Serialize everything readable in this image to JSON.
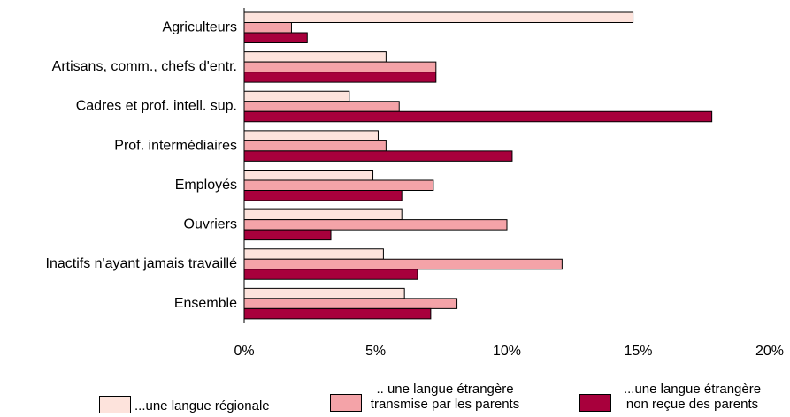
{
  "chart_data": {
    "type": "barh",
    "categories": [
      "Agriculteurs",
      "Artisans, comm., chefs d'entr.",
      "Cadres et prof. intell. sup.",
      "Prof. intermédiaires",
      "Employés",
      "Ouvriers",
      "Inactifs n'ayant jamais travaillé",
      "Ensemble"
    ],
    "series": [
      {
        "name": "...une langue régionale",
        "color": "#fde3dc",
        "values": [
          14.8,
          5.4,
          4.0,
          5.1,
          4.9,
          6.0,
          5.3,
          6.1
        ]
      },
      {
        "name": ".. une langue étrangère transmise par les parents",
        "color": "#f4a3a8",
        "values": [
          1.8,
          7.3,
          5.9,
          5.4,
          7.2,
          10.0,
          12.1,
          8.1
        ]
      },
      {
        "name": "...une langue étrangère non reçue des parents",
        "color": "#a8003c",
        "values": [
          2.4,
          7.3,
          17.8,
          10.2,
          6.0,
          3.3,
          6.6,
          7.1
        ]
      }
    ],
    "xlim": [
      0,
      20
    ],
    "xticks": [
      {
        "value": 0,
        "label": "0%"
      },
      {
        "value": 5,
        "label": "5%"
      },
      {
        "value": 10,
        "label": "10%"
      },
      {
        "value": 15,
        "label": "15%"
      },
      {
        "value": 20,
        "label": "20%"
      }
    ]
  }
}
